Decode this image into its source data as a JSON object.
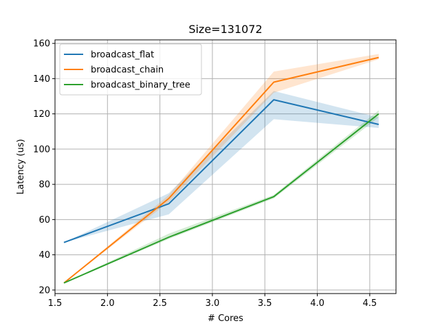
{
  "chart_data": {
    "type": "line",
    "title": "Size=131072",
    "xlabel": "# Cores",
    "ylabel": "Latency (us)",
    "xlim": [
      1.5,
      4.75
    ],
    "ylim": [
      18,
      162
    ],
    "xticks": [
      1.5,
      2.0,
      2.5,
      3.0,
      3.5,
      4.0,
      4.5
    ],
    "xtick_labels": [
      "1.5",
      "2.0",
      "2.5",
      "3.0",
      "3.5",
      "4.0",
      "4.5"
    ],
    "yticks": [
      20,
      40,
      60,
      80,
      100,
      120,
      140,
      160
    ],
    "ytick_labels": [
      "20",
      "40",
      "60",
      "80",
      "100",
      "120",
      "140",
      "160"
    ],
    "grid": true,
    "legend_position": "top-left",
    "x": [
      1.585,
      2.585,
      3.585,
      4.585
    ],
    "series": [
      {
        "name": "broadcast_flat",
        "color": "#1f77b4",
        "values": [
          47,
          69,
          128,
          114
        ],
        "band_lower": [
          47,
          63,
          117,
          112
        ],
        "band_upper": [
          47,
          75,
          133,
          118
        ]
      },
      {
        "name": "broadcast_chain",
        "color": "#ff7f0e",
        "values": [
          24,
          72,
          138,
          152
        ],
        "band_lower": [
          24,
          70,
          132,
          151
        ],
        "band_upper": [
          24,
          74,
          144,
          154
        ]
      },
      {
        "name": "broadcast_binary_tree",
        "color": "#2ca02c",
        "values": [
          24,
          50,
          73,
          120
        ],
        "band_lower": [
          24,
          49,
          72,
          118
        ],
        "band_upper": [
          24,
          52,
          74,
          122
        ]
      }
    ]
  }
}
